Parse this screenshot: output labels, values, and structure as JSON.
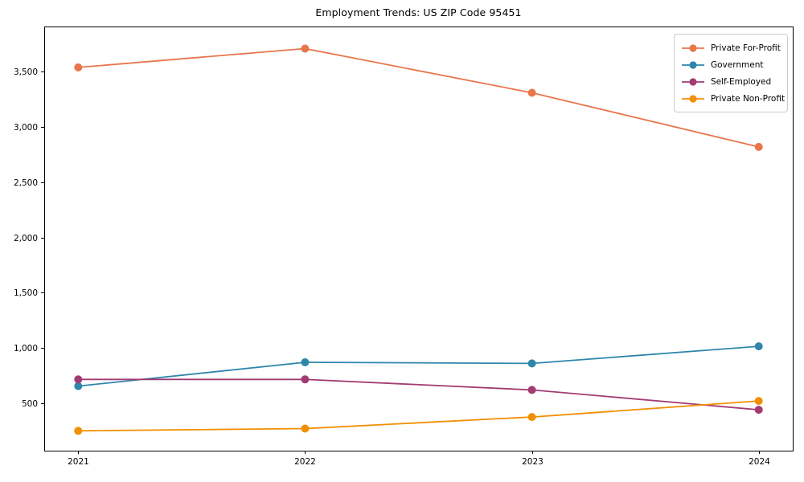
{
  "chart_data": {
    "type": "line",
    "title": "Employment Trends: US ZIP Code 95451",
    "categories": [
      2021,
      2022,
      2023,
      2024
    ],
    "x_tick_labels": [
      "2021",
      "2022",
      "2023",
      "2024"
    ],
    "series": [
      {
        "name": "Private For-Profit",
        "color": "#E8764B",
        "values": [
          3540,
          3710,
          3310,
          2820
        ]
      },
      {
        "name": "Government",
        "color": "#2E86AB",
        "values": [
          655,
          870,
          860,
          1015
        ]
      },
      {
        "name": "Self-Employed",
        "color": "#A23B72",
        "values": [
          715,
          715,
          620,
          440
        ]
      },
      {
        "name": "Private Non-Profit",
        "color": "#F18F01",
        "values": [
          250,
          270,
          375,
          520
        ]
      }
    ],
    "xlabel": "",
    "ylabel": "",
    "ylim": [
      70,
      3910
    ],
    "yticks": [
      500,
      1000,
      1500,
      2000,
      2500,
      3000,
      3500
    ],
    "ytick_labels": [
      "500",
      "1,000",
      "1,500",
      "2,000",
      "2,500",
      "3,000",
      "3,500"
    ],
    "grid": false,
    "legend_position": "upper right",
    "axis_color": "#000000",
    "text_color": "#000000",
    "background_color": "#ffffff"
  }
}
